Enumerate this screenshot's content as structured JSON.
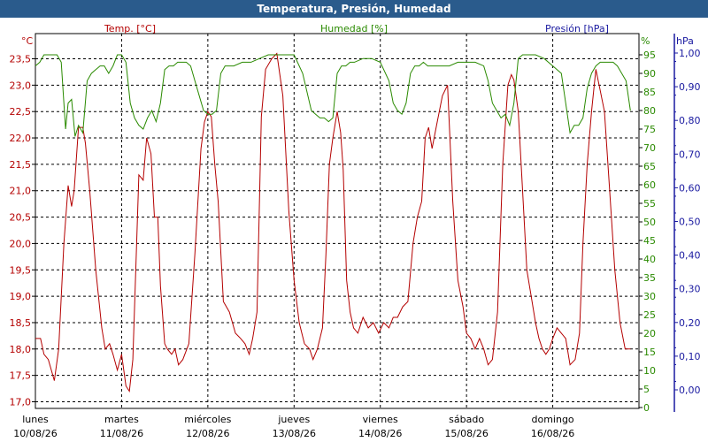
{
  "title": "Temperatura, Presión, Humedad",
  "chart_data": {
    "type": "line",
    "title": "Temperatura, Presión, Humedad",
    "grid": true,
    "x_days": [
      {
        "weekday": "lunes",
        "date": "10/08/26"
      },
      {
        "weekday": "martes",
        "date": "11/08/26"
      },
      {
        "weekday": "miércoles",
        "date": "12/08/26"
      },
      {
        "weekday": "jueves",
        "date": "13/08/26"
      },
      {
        "weekday": "viernes",
        "date": "14/08/26"
      },
      {
        "weekday": "sábado",
        "date": "15/08/26"
      },
      {
        "weekday": "domingo",
        "date": "16/08/26"
      }
    ],
    "axes": {
      "temp": {
        "label": "Temp. [°C]",
        "unit": "°C",
        "min": 17.0,
        "max": 23.5,
        "ticks": [
          "17,0",
          "17,5",
          "18,0",
          "18,5",
          "19,0",
          "19,5",
          "20,0",
          "20,5",
          "21,0",
          "21,5",
          "22,0",
          "22,5",
          "23,0",
          "23,5"
        ],
        "color": "#b40000"
      },
      "hum": {
        "label": "Humedad [%]",
        "unit": "%",
        "min": 0,
        "max": 95,
        "ticks": [
          "0",
          "5",
          "10",
          "15",
          "20",
          "25",
          "30",
          "35",
          "40",
          "45",
          "50",
          "55",
          "60",
          "65",
          "70",
          "75",
          "80",
          "85",
          "90",
          "95"
        ],
        "color": "#2a8a00"
      },
      "pres": {
        "label": "Presión [hPa]",
        "unit": "hPa",
        "min": 0.0,
        "max": 1.0,
        "ticks": [
          "0,00",
          "0,10",
          "0,20",
          "0,30",
          "0,40",
          "0,50",
          "0,60",
          "0,70",
          "0,80",
          "0,90",
          "1,00"
        ],
        "color": "#1a1aa0"
      }
    },
    "series": [
      {
        "name": "Temp. [°C]",
        "axis": "temp",
        "color": "#b40000",
        "x": [
          0.0,
          0.06,
          0.1,
          0.15,
          0.22,
          0.27,
          0.33,
          0.38,
          0.42,
          0.45,
          0.5,
          0.55,
          0.58,
          0.63,
          0.7,
          0.77,
          0.81,
          0.86,
          0.9,
          0.95,
          1.0,
          1.05,
          1.09,
          1.13,
          1.17,
          1.2,
          1.25,
          1.29,
          1.34,
          1.38,
          1.42,
          1.45,
          1.5,
          1.53,
          1.58,
          1.62,
          1.66,
          1.71,
          1.78,
          1.85,
          1.92,
          1.96,
          2.0,
          2.04,
          2.08,
          2.12,
          2.18,
          2.25,
          2.32,
          2.38,
          2.43,
          2.48,
          2.52,
          2.57,
          2.62,
          2.67,
          2.74,
          2.8,
          2.87,
          2.94,
          3.0,
          3.06,
          3.12,
          3.18,
          3.22,
          3.27,
          3.33,
          3.37,
          3.41,
          3.45,
          3.5,
          3.54,
          3.57,
          3.61,
          3.65,
          3.69,
          3.74,
          3.8,
          3.86,
          3.92,
          3.98,
          4.04,
          4.1,
          4.15,
          4.2,
          4.26,
          4.32,
          4.38,
          4.43,
          4.48,
          4.52,
          4.56,
          4.6,
          4.66,
          4.72,
          4.78,
          4.84,
          4.9,
          4.96,
          5.0,
          5.05,
          5.1,
          5.15,
          5.2,
          5.25,
          5.3,
          5.36,
          5.42,
          5.48,
          5.52,
          5.55,
          5.6,
          5.65,
          5.7,
          5.75,
          5.8,
          5.84,
          5.88,
          5.92,
          5.96,
          6.0,
          6.05,
          6.1,
          6.15,
          6.2,
          6.26,
          6.31,
          6.35,
          6.4,
          6.45,
          6.5,
          6.55,
          6.6,
          6.66,
          6.72,
          6.78,
          6.84,
          6.9
        ],
        "y": [
          18.2,
          18.2,
          17.9,
          17.8,
          17.4,
          18.0,
          20.0,
          21.1,
          20.7,
          21.0,
          22.2,
          22.2,
          21.9,
          21.0,
          19.5,
          18.4,
          18.0,
          18.1,
          17.9,
          17.6,
          17.9,
          17.3,
          17.2,
          17.8,
          19.8,
          21.3,
          21.2,
          22.0,
          21.7,
          20.5,
          20.5,
          19.2,
          18.1,
          18.0,
          17.9,
          18.0,
          17.7,
          17.8,
          18.1,
          19.8,
          21.8,
          22.3,
          22.5,
          22.4,
          21.5,
          20.8,
          18.9,
          18.7,
          18.3,
          18.2,
          18.1,
          17.9,
          18.2,
          18.7,
          22.4,
          23.3,
          23.5,
          23.6,
          22.8,
          20.6,
          19.3,
          18.5,
          18.1,
          18.0,
          17.8,
          18.0,
          18.4,
          19.8,
          21.5,
          22.0,
          22.5,
          22.1,
          21.4,
          19.3,
          18.7,
          18.4,
          18.3,
          18.6,
          18.4,
          18.5,
          18.3,
          18.5,
          18.4,
          18.6,
          18.6,
          18.8,
          18.9,
          20.0,
          20.5,
          20.8,
          22.0,
          22.2,
          21.8,
          22.3,
          22.8,
          23.0,
          20.8,
          19.3,
          18.8,
          18.3,
          18.2,
          18.0,
          18.2,
          18.0,
          17.7,
          17.8,
          18.7,
          21.5,
          23.0,
          23.2,
          23.1,
          22.5,
          21.0,
          19.5,
          19.0,
          18.5,
          18.2,
          18.0,
          17.9,
          18.0,
          18.2,
          18.4,
          18.3,
          18.2,
          17.7,
          17.8,
          18.3,
          20.0,
          21.5,
          22.5,
          23.3,
          22.9,
          22.5,
          21.0,
          19.5,
          18.5,
          18.0,
          18.0
        ],
        "values_note": ""
      },
      {
        "name": "Humedad [%]",
        "axis": "hum",
        "color": "#2a8a00",
        "x": [
          0.0,
          0.05,
          0.1,
          0.15,
          0.2,
          0.25,
          0.3,
          0.35,
          0.38,
          0.42,
          0.46,
          0.5,
          0.55,
          0.6,
          0.65,
          0.7,
          0.75,
          0.8,
          0.85,
          0.9,
          0.95,
          1.0,
          1.05,
          1.1,
          1.15,
          1.2,
          1.25,
          1.3,
          1.35,
          1.4,
          1.45,
          1.5,
          1.55,
          1.6,
          1.65,
          1.7,
          1.75,
          1.8,
          1.85,
          1.9,
          1.95,
          2.0,
          2.05,
          2.1,
          2.15,
          2.2,
          2.3,
          2.4,
          2.5,
          2.6,
          2.7,
          2.8,
          2.9,
          3.0,
          3.1,
          3.2,
          3.25,
          3.3,
          3.35,
          3.4,
          3.45,
          3.5,
          3.55,
          3.6,
          3.65,
          3.7,
          3.8,
          3.9,
          4.0,
          4.1,
          4.15,
          4.2,
          4.25,
          4.3,
          4.35,
          4.4,
          4.45,
          4.5,
          4.55,
          4.6,
          4.7,
          4.8,
          4.9,
          5.0,
          5.1,
          5.2,
          5.25,
          5.3,
          5.35,
          5.4,
          5.45,
          5.5,
          5.55,
          5.6,
          5.65,
          5.7,
          5.8,
          5.9,
          6.0,
          6.1,
          6.15,
          6.2,
          6.25,
          6.3,
          6.35,
          6.4,
          6.45,
          6.5,
          6.55,
          6.6,
          6.65,
          6.7,
          6.75,
          6.8,
          6.85,
          6.9
        ],
        "y": [
          92,
          93,
          95,
          95,
          95,
          95,
          93,
          75,
          82,
          83,
          73,
          76,
          74,
          88,
          90,
          91,
          92,
          92,
          90,
          92,
          95,
          95,
          93,
          82,
          78,
          76,
          75,
          78,
          80,
          77,
          82,
          91,
          92,
          92,
          93,
          93,
          93,
          92,
          88,
          84,
          80,
          79,
          79,
          80,
          90,
          92,
          92,
          93,
          93,
          94,
          95,
          95,
          95,
          95,
          90,
          80,
          79,
          78,
          78,
          77,
          78,
          90,
          92,
          92,
          93,
          93,
          94,
          94,
          93,
          88,
          82,
          80,
          79,
          82,
          90,
          92,
          92,
          93,
          92,
          92,
          92,
          92,
          93,
          93,
          93,
          92,
          88,
          82,
          80,
          78,
          79,
          76,
          82,
          94,
          95,
          95,
          95,
          94,
          92,
          90,
          82,
          74,
          76,
          76,
          78,
          86,
          90,
          92,
          93,
          93,
          93,
          93,
          92,
          90,
          88,
          80
        ],
        "values_note": ""
      }
    ]
  }
}
